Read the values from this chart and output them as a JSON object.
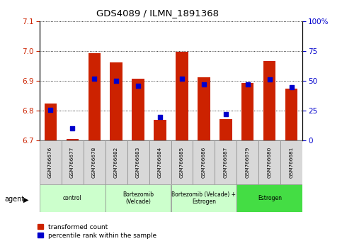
{
  "title": "GDS4089 / ILMN_1891368",
  "samples": [
    "GSM766676",
    "GSM766677",
    "GSM766678",
    "GSM766682",
    "GSM766683",
    "GSM766684",
    "GSM766685",
    "GSM766686",
    "GSM766687",
    "GSM766679",
    "GSM766680",
    "GSM766681"
  ],
  "red_values": [
    6.824,
    6.706,
    6.993,
    6.963,
    6.907,
    6.77,
    6.998,
    6.913,
    6.773,
    6.893,
    6.967,
    6.875
  ],
  "blue_percentiles": [
    26,
    10,
    52,
    50,
    46,
    20,
    52,
    47,
    22,
    47,
    51,
    45
  ],
  "ylim_left": [
    6.7,
    7.1
  ],
  "ylim_right": [
    0,
    100
  ],
  "yticks_left": [
    6.7,
    6.8,
    6.9,
    7.0,
    7.1
  ],
  "yticks_right": [
    0,
    25,
    50,
    75,
    100
  ],
  "ytick_labels_right": [
    "0",
    "25",
    "50",
    "75",
    "100%"
  ],
  "base": 6.7,
  "groups": [
    {
      "label": "control",
      "start": 0,
      "end": 3,
      "color": "#ccffcc"
    },
    {
      "label": "Bortezomib\n(Velcade)",
      "start": 3,
      "end": 6,
      "color": "#ccffcc"
    },
    {
      "label": "Bortezomib (Velcade) +\nEstrogen",
      "start": 6,
      "end": 9,
      "color": "#ccffcc"
    },
    {
      "label": "Estrogen",
      "start": 9,
      "end": 12,
      "color": "#44dd44"
    }
  ],
  "bar_color": "#cc2200",
  "dot_color": "#0000cc",
  "plot_bg": "#ffffff",
  "left_tick_color": "#cc2200",
  "right_tick_color": "#0000cc",
  "legend_labels": [
    "transformed count",
    "percentile rank within the sample"
  ]
}
